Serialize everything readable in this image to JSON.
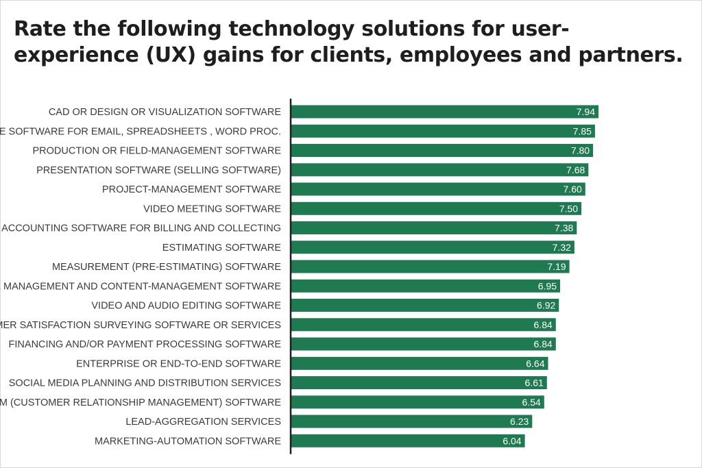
{
  "chart_data": {
    "type": "bar",
    "orientation": "horizontal",
    "title": "Rate the following technology solutions for user-experience (UX) gains for clients, employees and partners.",
    "categories": [
      "CAD OR DESIGN OR VISUALIZATION SOFTWARE",
      "OFFICE SOFTWARE FOR EMAIL, SPREADSHEETS , WORD PROC.",
      "PRODUCTION OR FIELD-MANAGEMENT SOFTWARE",
      "PRESENTATION SOFTWARE (SELLING SOFTWARE)",
      "PROJECT-MANAGEMENT SOFTWARE",
      "VIDEO MEETING SOFTWARE",
      "ACCOUNTING SOFTWARE FOR BILLING AND COLLECTING",
      "ESTIMATING SOFTWARE",
      "MEASUREMENT (PRE-ESTIMATING) SOFTWARE",
      "WEBSITE MANAGEMENT AND CONTENT-MANAGEMENT SOFTWARE",
      "VIDEO AND AUDIO EDITING SOFTWARE",
      "CUSTOMER SATISFACTION SURVEYING SOFTWARE OR SERVICES",
      "FINANCING AND/OR PAYMENT PROCESSING SOFTWARE",
      "ENTERPRISE OR END-TO-END SOFTWARE",
      "SOCIAL MEDIA PLANNING AND DISTRIBUTION SERVICES",
      "CRM (CUSTOMER RELATIONSHIP MANAGEMENT) SOFTWARE",
      "LEAD-AGGREGATION SERVICES",
      "MARKETING-AUTOMATION SOFTWARE"
    ],
    "values": [
      7.94,
      7.85,
      7.8,
      7.68,
      7.6,
      7.5,
      7.38,
      7.32,
      7.19,
      6.95,
      6.92,
      6.84,
      6.84,
      6.64,
      6.61,
      6.54,
      6.23,
      6.04
    ],
    "value_labels": [
      "7.94",
      "7.85",
      "7.80",
      "7.68",
      "7.60",
      "7.50",
      "7.38",
      "7.32",
      "7.19",
      "6.95",
      "6.92",
      "6.84",
      "6.84",
      "6.64",
      "6.61",
      "6.54",
      "6.23",
      "6.04"
    ],
    "xlim": [
      0,
      7.94
    ],
    "grid": false,
    "legend": "none",
    "bar_color": "#1f7a52",
    "axis_color": "#1e1e1e",
    "label_color": "#3a3a3a",
    "value_label_color": "#ffffff"
  }
}
